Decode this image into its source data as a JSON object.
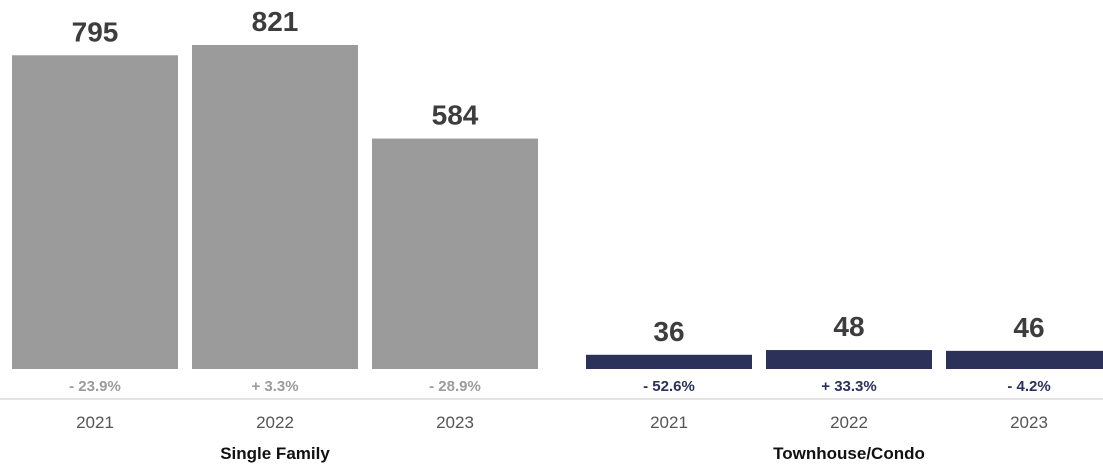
{
  "chart_data": {
    "type": "bar",
    "title": "",
    "xlabel": "",
    "ylabel": "",
    "grid": false,
    "groups": [
      {
        "name": "Single Family",
        "color": "#9b9b9b",
        "pct_color": "#9b9b9b",
        "bars": [
          {
            "year": "2021",
            "value": 795,
            "value_label": "795",
            "change": "- 23.9%"
          },
          {
            "year": "2022",
            "value": 821,
            "value_label": "821",
            "change": "+ 3.3%"
          },
          {
            "year": "2023",
            "value": 584,
            "value_label": "584",
            "change": "- 28.9%"
          }
        ]
      },
      {
        "name": "Townhouse/Condo",
        "color": "#2b3159",
        "pct_color": "#2b3159",
        "bars": [
          {
            "year": "2021",
            "value": 36,
            "value_label": "36",
            "change": "- 52.6%"
          },
          {
            "year": "2022",
            "value": 48,
            "value_label": "48",
            "change": "+ 33.3%"
          },
          {
            "year": "2023",
            "value": 46,
            "value_label": "46",
            "change": "- 4.2%"
          }
        ]
      }
    ]
  }
}
